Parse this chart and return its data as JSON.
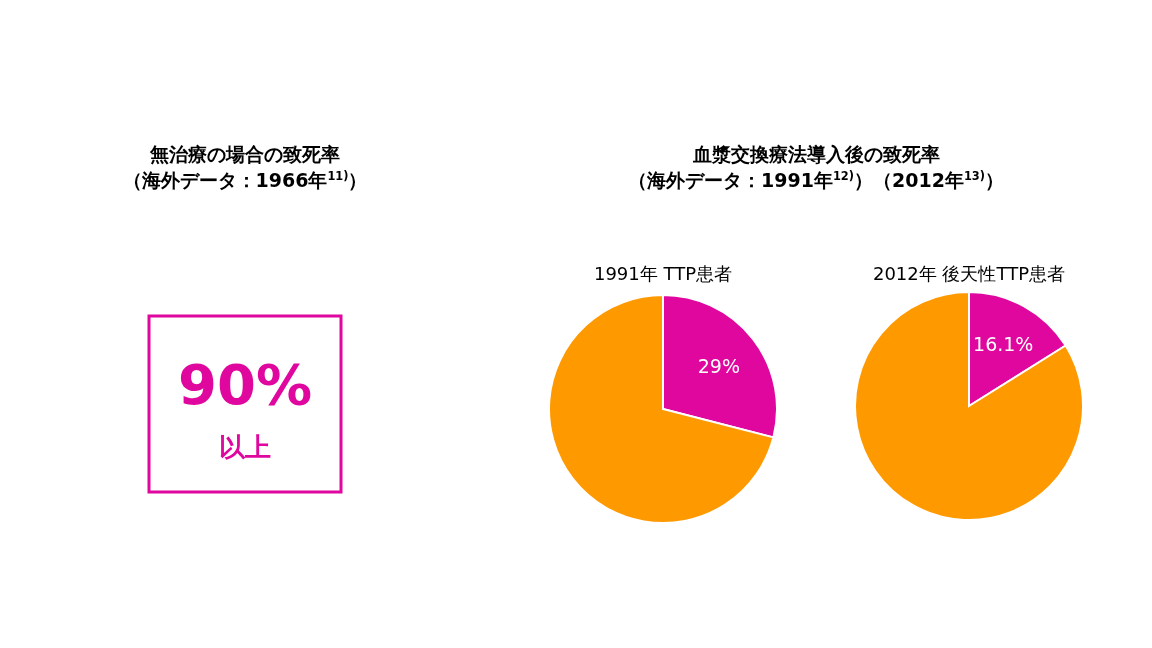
{
  "chart_data": [
    {
      "type": "other",
      "title": "無治療の場合の致死率（海外データ：1966年$^{11)}$）",
      "annotations": [
        "90%",
        "以上"
      ],
      "color": "#e0079f"
    },
    {
      "type": "pie",
      "title": "血漿交換療法導入後の致死率（海外データ：1991年$^{12)}$）（2012年$^{13)}$）",
      "subtitle": "1991年 TTP患者",
      "categories": [
        null,
        null
      ],
      "values": [
        29,
        71
      ],
      "colors": [
        "#e0079f",
        "#ff9900"
      ],
      "value_labels": [
        "29%",
        null
      ]
    },
    {
      "type": "pie",
      "subtitle": "2012年 後天性TTP患者",
      "categories": [
        null,
        null
      ],
      "values": [
        16.1,
        83.9
      ],
      "colors": [
        "#e0079f",
        "#ff9900"
      ],
      "value_labels": [
        "16.1%",
        null
      ]
    }
  ]
}
